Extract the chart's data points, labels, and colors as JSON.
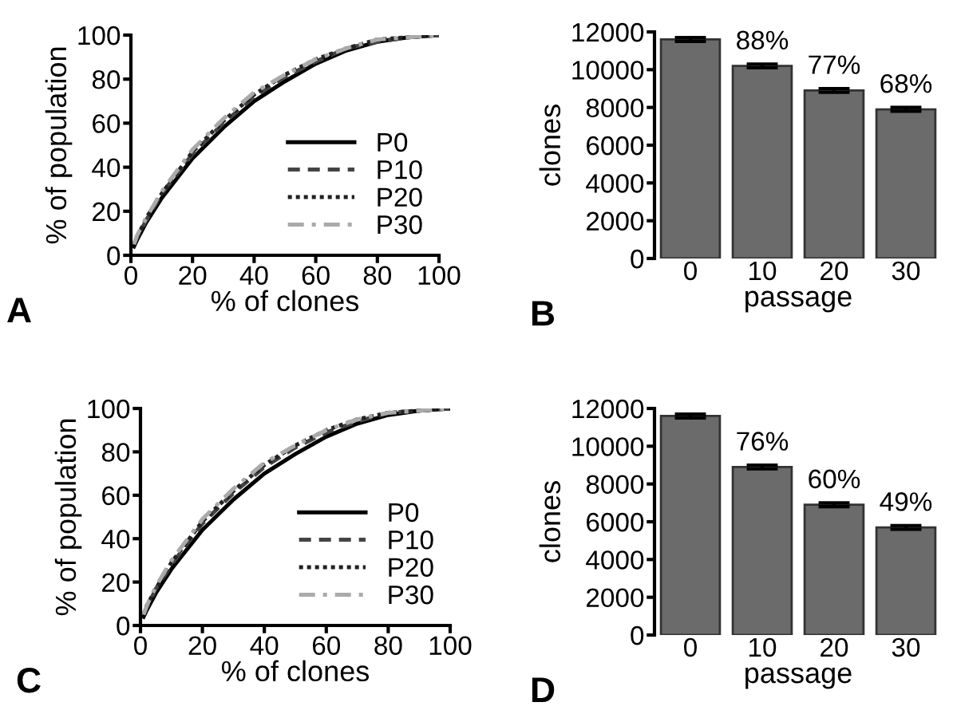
{
  "chart_data": [
    {
      "type": "line",
      "xlabel": "% of clones",
      "ylabel": "% of population",
      "annotations": [
        "A"
      ],
      "xlim": [
        0,
        100
      ],
      "ylim": [
        0,
        100
      ],
      "xticks": [
        0,
        20,
        40,
        60,
        80,
        100
      ],
      "yticks": [
        0,
        20,
        40,
        60,
        80,
        100
      ],
      "grid": false,
      "legend": "right",
      "marker": "none",
      "series": [
        {
          "name": "P0",
          "color": "#000000",
          "line_style": "solid",
          "x": [
            1,
            2,
            5,
            10,
            20,
            30,
            40,
            50,
            60,
            70,
            80,
            90,
            100
          ],
          "values": [
            4,
            7,
            15,
            26,
            44,
            58,
            70,
            79,
            87,
            93,
            97,
            99,
            100
          ]
        },
        {
          "name": "P10",
          "color": "#444444",
          "line_style": "dashed",
          "x": [
            1,
            2,
            5,
            10,
            20,
            30,
            40,
            50,
            60,
            70,
            80,
            90,
            100
          ],
          "values": [
            5,
            8,
            16,
            28,
            46,
            60,
            72,
            81,
            88,
            94,
            97,
            99,
            100
          ]
        },
        {
          "name": "P20",
          "color": "#222222",
          "line_style": "dotted",
          "x": [
            1,
            2,
            5,
            10,
            20,
            30,
            40,
            50,
            60,
            70,
            80,
            90,
            100
          ],
          "values": [
            5,
            8,
            17,
            28,
            47,
            61,
            73,
            82,
            89,
            94,
            98,
            99,
            100
          ]
        },
        {
          "name": "P30",
          "color": "#aaaaaa",
          "line_style": "dashdot",
          "x": [
            1,
            2,
            5,
            10,
            20,
            30,
            40,
            50,
            60,
            70,
            80,
            90,
            100
          ],
          "values": [
            5,
            9,
            17,
            29,
            48,
            62,
            74,
            82,
            89,
            94,
            98,
            99,
            100
          ]
        }
      ]
    },
    {
      "type": "bar",
      "xlabel": "passage",
      "ylabel": "clones",
      "annotations": [
        "B",
        {
          "text": "88%",
          "x": "10",
          "y": 10200
        },
        {
          "text": "77%",
          "x": "20",
          "y": 8900
        },
        {
          "text": "68%",
          "x": "30",
          "y": 7900
        }
      ],
      "categories": [
        "0",
        "10",
        "20",
        "30"
      ],
      "ylim": [
        0,
        12000
      ],
      "yticks": [
        0,
        2000,
        4000,
        6000,
        8000,
        10000,
        12000
      ],
      "grid": false,
      "legend": false,
      "series": [
        {
          "color": "#6b6b6b",
          "values": [
            11600,
            10200,
            8900,
            7900
          ],
          "errors": [
            100,
            100,
            100,
            100
          ]
        }
      ]
    },
    {
      "type": "line",
      "xlabel": "% of clones",
      "ylabel": "% of population",
      "annotations": [
        "C"
      ],
      "xlim": [
        0,
        100
      ],
      "ylim": [
        0,
        100
      ],
      "xticks": [
        0,
        20,
        40,
        60,
        80,
        100
      ],
      "yticks": [
        0,
        20,
        40,
        60,
        80,
        100
      ],
      "grid": false,
      "legend": "right",
      "marker": "none",
      "series": [
        {
          "name": "P0",
          "color": "#000000",
          "line_style": "solid",
          "x": [
            1,
            2,
            5,
            10,
            20,
            30,
            40,
            50,
            60,
            70,
            80,
            90,
            100
          ],
          "values": [
            4,
            7,
            15,
            26,
            44,
            58,
            70,
            79,
            87,
            93,
            97,
            99,
            100
          ]
        },
        {
          "name": "P10",
          "color": "#444444",
          "line_style": "dashed",
          "x": [
            1,
            2,
            5,
            10,
            20,
            30,
            40,
            50,
            60,
            70,
            80,
            90,
            100
          ],
          "values": [
            5,
            8,
            17,
            28,
            47,
            61,
            73,
            82,
            89,
            94,
            98,
            99,
            100
          ]
        },
        {
          "name": "P20",
          "color": "#222222",
          "line_style": "dotted",
          "x": [
            1,
            2,
            5,
            10,
            20,
            30,
            40,
            50,
            60,
            70,
            80,
            90,
            100
          ],
          "values": [
            5,
            9,
            17,
            29,
            48,
            62,
            74,
            83,
            90,
            95,
            98,
            99,
            100
          ]
        },
        {
          "name": "P30",
          "color": "#aaaaaa",
          "line_style": "dashdot",
          "x": [
            1,
            2,
            5,
            10,
            20,
            30,
            40,
            50,
            60,
            70,
            80,
            90,
            100
          ],
          "values": [
            5,
            9,
            18,
            30,
            49,
            63,
            75,
            83,
            90,
            95,
            98,
            99,
            100
          ]
        }
      ]
    },
    {
      "type": "bar",
      "xlabel": "passage",
      "ylabel": "clones",
      "annotations": [
        "D",
        {
          "text": "76%",
          "x": "10",
          "y": 8900
        },
        {
          "text": "60%",
          "x": "20",
          "y": 6900
        },
        {
          "text": "49%",
          "x": "30",
          "y": 5700
        }
      ],
      "categories": [
        "0",
        "10",
        "20",
        "30"
      ],
      "ylim": [
        0,
        12000
      ],
      "yticks": [
        0,
        2000,
        4000,
        6000,
        8000,
        10000,
        12000
      ],
      "grid": false,
      "legend": false,
      "series": [
        {
          "color": "#6b6b6b",
          "values": [
            11600,
            8900,
            6900,
            5700
          ],
          "errors": [
            100,
            100,
            100,
            100
          ]
        }
      ]
    }
  ]
}
